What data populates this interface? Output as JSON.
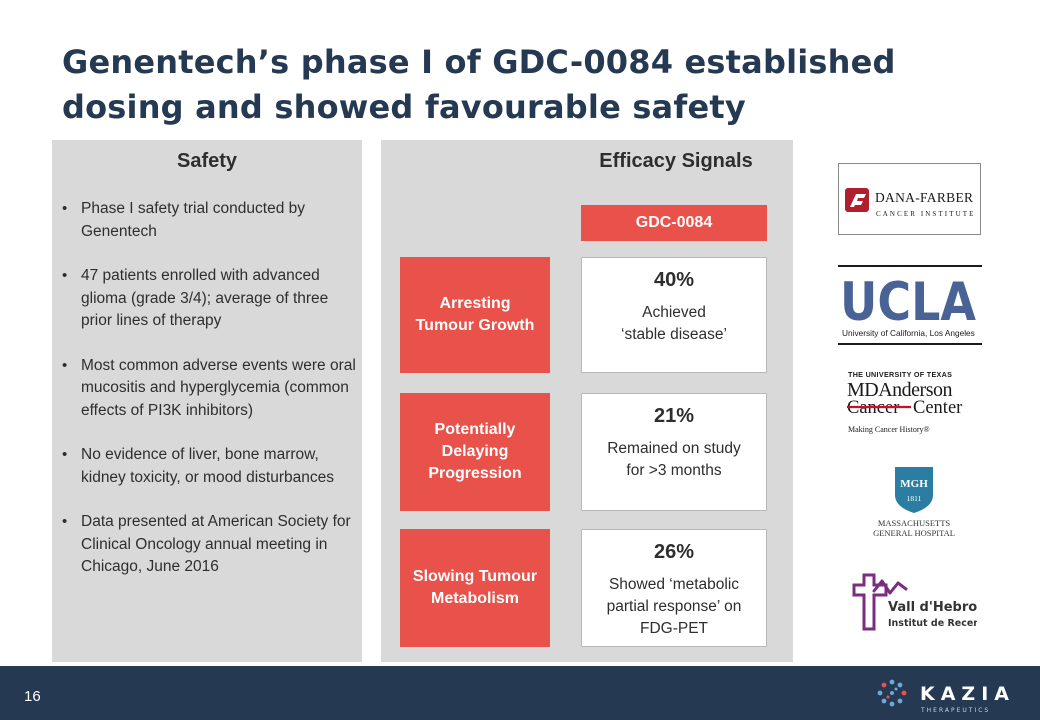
{
  "title": {
    "line1": "Genentech’s phase I of GDC-0084 established",
    "line2": "dosing and showed favourable safety"
  },
  "safety": {
    "heading": "Safety",
    "bullets": [
      "Phase I safety trial conducted by Genentech",
      "47 patients enrolled with advanced glioma (grade 3/4); average of three prior lines of therapy",
      "Most common adverse events were oral mucositis and hyperglycemia (common effects of PI3K inhibitors)",
      "No evidence of liver, bone marrow, kidney toxicity, or mood disturbances",
      "Data presented at American Society for Clinical Oncology annual meeting in Chicago, June 2016"
    ]
  },
  "efficacy": {
    "heading": "Efficacy Signals",
    "drug_label": "GDC-0084",
    "rows": [
      {
        "category": "Arresting Tumour Growth",
        "percent": "40%",
        "desc_line1": "Achieved",
        "desc_line2": "‘stable disease’",
        "desc_line3": ""
      },
      {
        "category": "Potentially Delaying Progression",
        "percent": "21%",
        "desc_line1": "Remained on study",
        "desc_line2": "for >3 months",
        "desc_line3": ""
      },
      {
        "category": "Slowing Tumour Metabolism",
        "percent": "26%",
        "desc_line1": "Showed ‘metabolic",
        "desc_line2": "partial response’ on",
        "desc_line3": "FDG-PET"
      }
    ]
  },
  "logos": {
    "dana_farber": {
      "name": "DANA-FARBER",
      "sub": "CANCER INSTITUTE"
    },
    "ucla": {
      "name": "UCLA",
      "sub": "University of California, Los Angeles"
    },
    "md_anderson": {
      "top": "THE UNIVERSITY OF TEXAS",
      "line1": "MDAnderson",
      "line2a": "Cancer",
      "line2b": "Center",
      "tagline": "Making Cancer History®"
    },
    "mgh": {
      "badge": "MGH",
      "year": "1811",
      "line1": "MASSACHUSETTS",
      "line2": "GENERAL HOSPITAL"
    },
    "vall_hebron": {
      "line1": "Vall d'Hebron",
      "line2": "Institut de Recerca"
    }
  },
  "footer": {
    "page_number": "16",
    "brand": "KAZIA",
    "brand_sub": "THERAPEUTICS"
  },
  "colors": {
    "navy": "#253a52",
    "accent_red": "#e8524a",
    "panel_gray": "#d9d9d9",
    "ucla_blue": "#4a6396",
    "mdanderson_red": "#c8102e",
    "vall_purple": "#7b2d7f",
    "kazia_blue": "#6ea8d8"
  }
}
